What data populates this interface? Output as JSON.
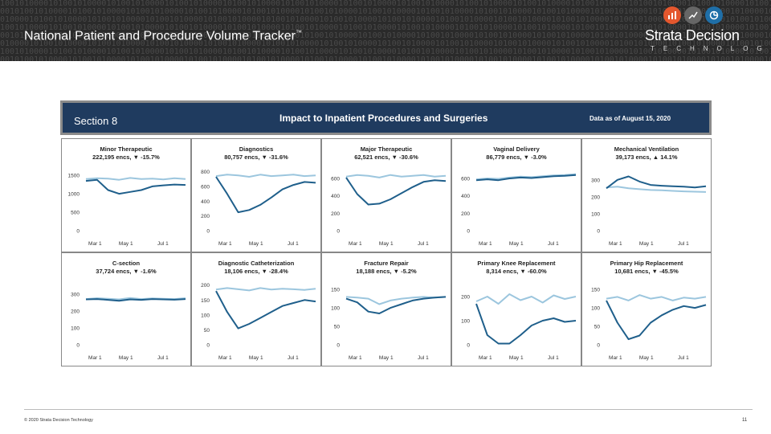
{
  "slide": {
    "title": "National Patient and Procedure Volume Tracker",
    "title_mark": "™",
    "brand": "Strata Decision",
    "brand_sub": "TECHNOLOGY",
    "copyright": "© 2020 Strata Decision Technology",
    "page_number": "11"
  },
  "dashboard": {
    "section": "Section 8",
    "heading": "Impact to Inpatient Procedures and Surgeries",
    "as_of": "Data as of August 15, 2020"
  },
  "colors": {
    "banner": "#2a2a2a",
    "header": "#1f3b5f",
    "dark_line": "#1f5f8b",
    "light_line": "#9cc6de"
  },
  "chart_data": [
    {
      "type": "line",
      "title": "Minor Therapeutic",
      "subtitle": "222,195 encs, ▼ -15.7%",
      "x_ticks": [
        "Mar 1",
        "May 1",
        "Jul 1"
      ],
      "y_ticks": [
        "0",
        "500",
        "1000",
        "1500"
      ],
      "ylim": [
        0,
        1700
      ],
      "series": [
        {
          "values": [
            1400,
            1420,
            1410,
            1380,
            1430,
            1400,
            1410,
            1390,
            1420,
            1400
          ]
        },
        {
          "values": [
            1350,
            1380,
            1100,
            1000,
            1050,
            1100,
            1200,
            1230,
            1250,
            1240
          ]
        }
      ]
    },
    {
      "type": "line",
      "title": "Diagnostics",
      "subtitle": "80,757 encs, ▼ -31.6%",
      "x_ticks": [
        "Mar 1",
        "May 1",
        "Jul 1"
      ],
      "y_ticks": [
        "0",
        "200",
        "400",
        "600",
        "800"
      ],
      "ylim": [
        0,
        850
      ],
      "series": [
        {
          "values": [
            740,
            760,
            750,
            730,
            760,
            740,
            750,
            760,
            740,
            750
          ]
        },
        {
          "values": [
            730,
            500,
            250,
            280,
            350,
            450,
            560,
            620,
            660,
            650
          ]
        }
      ]
    },
    {
      "type": "line",
      "title": "Major Therapeutic",
      "subtitle": "62,521 encs, ▼ -30.6%",
      "x_ticks": [
        "Mar 1",
        "May 1",
        "Jul 1"
      ],
      "y_ticks": [
        "0",
        "200",
        "400",
        "600"
      ],
      "ylim": [
        0,
        720
      ],
      "series": [
        {
          "values": [
            620,
            640,
            630,
            610,
            640,
            620,
            630,
            640,
            620,
            630
          ]
        },
        {
          "values": [
            610,
            420,
            300,
            310,
            360,
            430,
            500,
            560,
            580,
            570
          ]
        }
      ]
    },
    {
      "type": "line",
      "title": "Vaginal Delivery",
      "subtitle": "86,779 encs, ▼ -3.0%",
      "x_ticks": [
        "Mar 1",
        "May 1",
        "Jul 1"
      ],
      "y_ticks": [
        "0",
        "200",
        "400",
        "600"
      ],
      "ylim": [
        0,
        720
      ],
      "series": [
        {
          "values": [
            590,
            600,
            595,
            610,
            620,
            615,
            625,
            635,
            640,
            650
          ]
        },
        {
          "values": [
            580,
            590,
            580,
            600,
            610,
            605,
            615,
            625,
            630,
            640
          ]
        }
      ]
    },
    {
      "type": "line",
      "title": "Mechanical Ventilation",
      "subtitle": "39,173 encs, ▲ 14.1%",
      "x_ticks": [
        "Mar 1",
        "May 1",
        "Jul 1"
      ],
      "y_ticks": [
        "0",
        "100",
        "200",
        "300"
      ],
      "ylim": [
        0,
        370
      ],
      "series": [
        {
          "values": [
            255,
            260,
            250,
            245,
            240,
            238,
            235,
            232,
            230,
            228
          ]
        },
        {
          "values": [
            250,
            300,
            320,
            290,
            270,
            265,
            262,
            260,
            255,
            262
          ]
        }
      ]
    },
    {
      "type": "line",
      "title": "C-section",
      "subtitle": "37,724 encs, ▼ -1.6%",
      "x_ticks": [
        "Mar 1",
        "May 1",
        "Jul 1"
      ],
      "y_ticks": [
        "0",
        "100",
        "200",
        "300"
      ],
      "ylim": [
        0,
        370
      ],
      "series": [
        {
          "values": [
            270,
            275,
            272,
            268,
            276,
            270,
            274,
            272,
            270,
            275
          ]
        },
        {
          "values": [
            268,
            270,
            265,
            260,
            268,
            265,
            270,
            268,
            266,
            270
          ]
        }
      ]
    },
    {
      "type": "line",
      "title": "Diagnostic Catheterization",
      "subtitle": "18,106 encs, ▼ -28.4%",
      "x_ticks": [
        "Mar 1",
        "May 1",
        "Jul 1"
      ],
      "y_ticks": [
        "0",
        "50",
        "100",
        "150",
        "200"
      ],
      "ylim": [
        0,
        210
      ],
      "series": [
        {
          "values": [
            185,
            190,
            186,
            182,
            190,
            185,
            188,
            186,
            184,
            188
          ]
        },
        {
          "values": [
            180,
            110,
            55,
            70,
            90,
            110,
            130,
            140,
            150,
            145
          ]
        }
      ]
    },
    {
      "type": "line",
      "title": "Fracture Repair",
      "subtitle": "18,188 encs, ▼ -5.2%",
      "x_ticks": [
        "Mar 1",
        "May 1",
        "Jul 1"
      ],
      "y_ticks": [
        "0",
        "50",
        "100",
        "150"
      ],
      "ylim": [
        0,
        170
      ],
      "series": [
        {
          "values": [
            130,
            128,
            125,
            110,
            120,
            125,
            128,
            130,
            128,
            130
          ]
        },
        {
          "values": [
            125,
            115,
            90,
            85,
            100,
            110,
            120,
            125,
            128,
            130
          ]
        }
      ]
    },
    {
      "type": "line",
      "title": "Primary Knee Replacement",
      "subtitle": "8,314 encs, ▼ -60.0%",
      "x_ticks": [
        "Mar 1",
        "May 1",
        "Jul 1"
      ],
      "y_ticks": [
        "0",
        "100",
        "200"
      ],
      "ylim": [
        0,
        260
      ],
      "series": [
        {
          "values": [
            180,
            200,
            170,
            210,
            185,
            200,
            175,
            205,
            190,
            200
          ]
        },
        {
          "values": [
            170,
            40,
            5,
            5,
            40,
            80,
            100,
            110,
            95,
            100
          ]
        }
      ]
    },
    {
      "type": "line",
      "title": "Primary Hip Replacement",
      "subtitle": "10,681 encs, ▼ -45.5%",
      "x_ticks": [
        "Mar 1",
        "May 1",
        "Jul 1"
      ],
      "y_ticks": [
        "0",
        "50",
        "100",
        "150"
      ],
      "ylim": [
        0,
        170
      ],
      "series": [
        {
          "values": [
            125,
            130,
            120,
            135,
            125,
            130,
            120,
            128,
            125,
            130
          ]
        },
        {
          "values": [
            120,
            60,
            15,
            25,
            60,
            80,
            95,
            105,
            100,
            108
          ]
        }
      ]
    }
  ]
}
